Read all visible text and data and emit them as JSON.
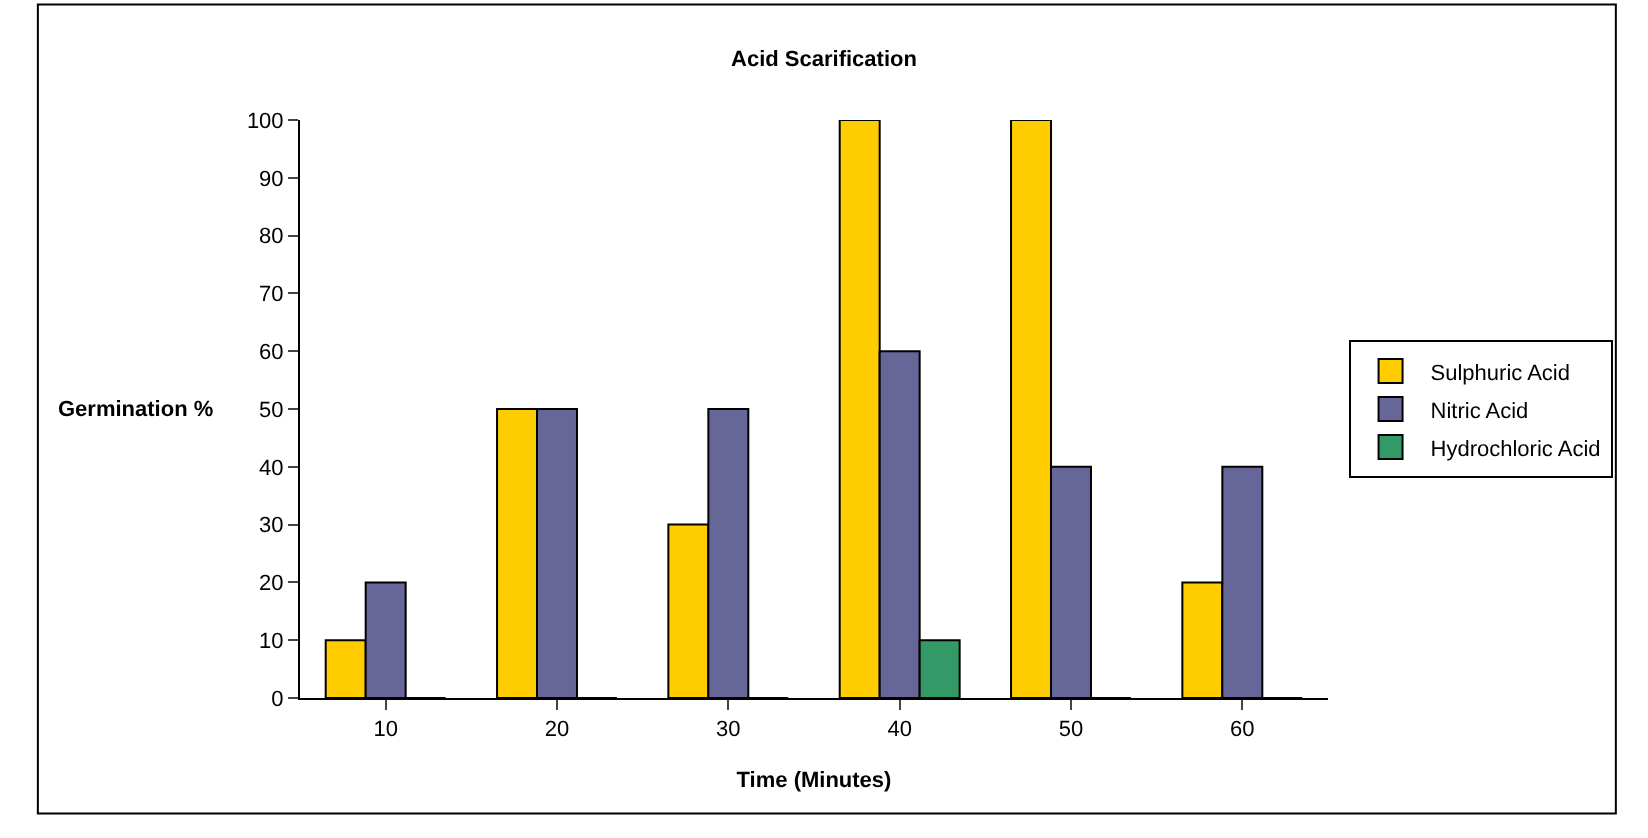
{
  "chart_data": {
    "type": "bar",
    "title": "Acid Scarification",
    "xlabel": "Time (Minutes)",
    "ylabel": "Germination %",
    "categories": [
      "10",
      "20",
      "30",
      "40",
      "50",
      "60"
    ],
    "series": [
      {
        "name": "Sulphuric Acid",
        "color": "#ffcc00",
        "values": [
          10,
          50,
          30,
          100,
          100,
          20
        ]
      },
      {
        "name": "Nitric Acid",
        "color": "#666699",
        "values": [
          20,
          50,
          50,
          60,
          40,
          40
        ]
      },
      {
        "name": "Hydrochloric Acid",
        "color": "#339966",
        "values": [
          0,
          0,
          0,
          10,
          0,
          0
        ]
      }
    ],
    "ylim": [
      0,
      100
    ],
    "yticks": [
      0,
      10,
      20,
      30,
      40,
      50,
      60,
      70,
      80,
      90,
      100
    ],
    "grid": false,
    "legend": "right"
  }
}
